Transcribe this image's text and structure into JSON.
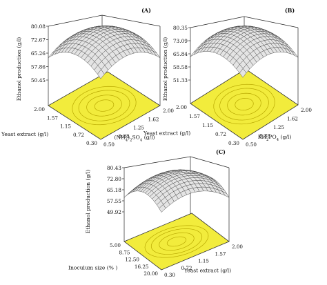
{
  "chart_data": [
    {
      "panel": "(A)",
      "type": "surface",
      "zlabel": "Ethanol production (g/l)",
      "xlabel": "Yeast extract (g/l)",
      "ylabel": "(NH4)2SO4 (g/l)",
      "ylabel_parts": [
        "(NH",
        "4",
        ")",
        "2",
        "SO",
        "4",
        " (g/l)"
      ],
      "zticks": [
        "80.08",
        "72.67",
        "65.26",
        "57.86",
        "50.45"
      ],
      "xticks": [
        "0.30",
        "0.72",
        "1.15",
        "1.57",
        "2.00"
      ],
      "yticks": [
        "0.50",
        "0.88",
        "1.25",
        "1.62",
        "2.00"
      ],
      "zlim": [
        50.45,
        80.08
      ],
      "surface_color": "#e4e4e4",
      "contour_color": "#f2ec3c"
    },
    {
      "panel": "(B)",
      "type": "surface",
      "zlabel": "Ethanol production (g/l)",
      "xlabel": "Yeast extract (g/l)",
      "ylabel": "KH2PO4 (g/l)",
      "ylabel_parts": [
        "KH",
        "2",
        "PO",
        "4",
        " (g/l)"
      ],
      "zticks": [
        "80.35",
        "73.09",
        "65.84",
        "58.58",
        "51.33"
      ],
      "xticks": [
        "0.30",
        "0.72",
        "1.15",
        "1.57",
        "2.00"
      ],
      "yticks": [
        "0.50",
        "0.88",
        "1.25",
        "1.62",
        "2.00"
      ],
      "zlim": [
        51.33,
        80.35
      ],
      "surface_color": "#e4e4e4",
      "contour_color": "#f2ec3c"
    },
    {
      "panel": "(C)",
      "type": "surface",
      "zlabel": "Ethanol production (g/l)",
      "xlabel": "Inoculum size (% )",
      "ylabel": "Yeast extract (g/l)",
      "zticks": [
        "80.43",
        "72.80",
        "65.18",
        "57.55",
        "49.92"
      ],
      "xticks": [
        "20.00",
        "16.25",
        "12.50",
        "8.75",
        "5.00"
      ],
      "yticks": [
        "0.30",
        "0.72",
        "1.15",
        "1.57",
        "2.00"
      ],
      "zlim": [
        49.92,
        80.43
      ],
      "surface_color": "#e4e4e4",
      "contour_color": "#f2ec3c"
    }
  ]
}
